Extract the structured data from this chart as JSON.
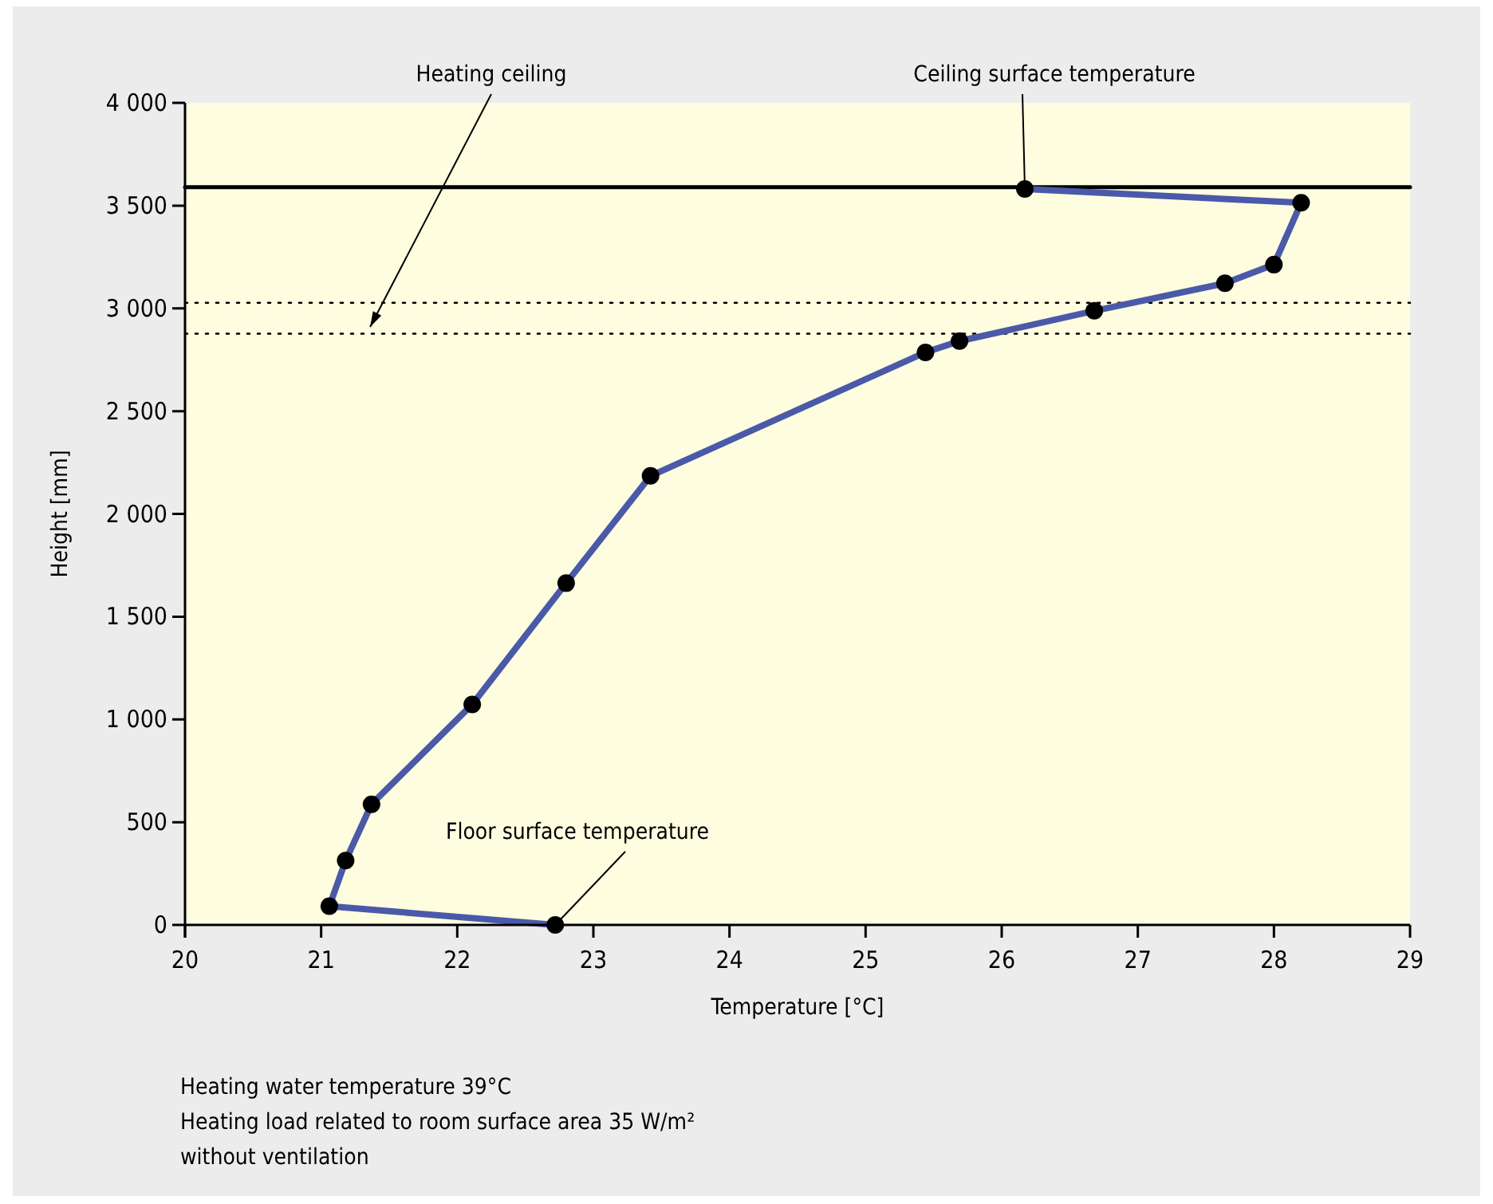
{
  "chart_data": {
    "type": "line",
    "xlabel": "Temperature [°C]",
    "ylabel": "Height [mm]",
    "x": [
      22.72,
      21.06,
      21.18,
      21.37,
      22.11,
      22.8,
      23.42,
      25.44,
      25.69,
      26.68,
      27.64,
      28.0,
      28.2,
      26.17
    ],
    "series": [
      {
        "color": "#4a5aa8",
        "values": [
          0,
          91,
          313,
          587,
          1073,
          1663,
          2185,
          2786,
          2841,
          2988,
          3122,
          3213,
          3514,
          3581
        ]
      }
    ],
    "marker": "circle",
    "line_style": "solid",
    "xlim": [
      20,
      29
    ],
    "xticks": [
      20,
      21,
      22,
      23,
      24,
      25,
      26,
      27,
      28,
      29
    ],
    "ylim": [
      0,
      4000
    ],
    "yticks": [
      {
        "value": 0,
        "label": "0"
      },
      {
        "value": 500,
        "label": "500"
      },
      {
        "value": 1000,
        "label": "1 000"
      },
      {
        "value": 1500,
        "label": "1 500"
      },
      {
        "value": 2000,
        "label": "2 000"
      },
      {
        "value": 2500,
        "label": "2 500"
      },
      {
        "value": 3000,
        "label": "3 000"
      },
      {
        "value": 3500,
        "label": "3 500"
      },
      {
        "value": 4000,
        "label": "4 000"
      }
    ],
    "ref_lines": [
      {
        "axis": "y",
        "value": 3590,
        "color": "#000000",
        "line_style": "solid"
      },
      {
        "axis": "y",
        "value": 3027,
        "color": "#000000",
        "line_style": "dotted"
      },
      {
        "axis": "y",
        "value": 2877,
        "color": "#000000",
        "line_style": "dotted"
      }
    ],
    "annotations": [
      {
        "text": "Heating ceiling",
        "x": 21.36,
        "y": 2910
      },
      {
        "text": "Ceiling surface temperature",
        "x": 26.17,
        "y": 3581
      },
      {
        "text": "Floor surface temperature",
        "x": 22.72,
        "y": 0
      },
      "Heating water temperature 39°C",
      "Heating load related to room surface area 35 W/m²",
      "without ventilation"
    ]
  }
}
